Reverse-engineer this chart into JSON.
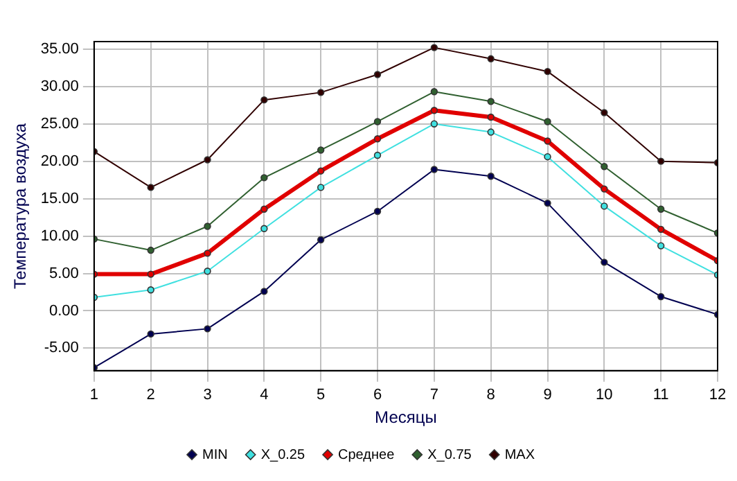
{
  "chart_data": {
    "type": "line",
    "xlabel": "Месяцы",
    "ylabel": "Температура воздуха",
    "x": [
      1,
      2,
      3,
      4,
      5,
      6,
      7,
      8,
      9,
      10,
      11,
      12
    ],
    "xlim": [
      1,
      12
    ],
    "xticks": [
      1,
      2,
      3,
      4,
      5,
      6,
      7,
      8,
      9,
      10,
      11,
      12
    ],
    "ylim": [
      -8,
      36
    ],
    "yticks": [
      {
        "value": -5,
        "label": "-5.00"
      },
      {
        "value": 0,
        "label": "0.00"
      },
      {
        "value": 5,
        "label": "5.00"
      },
      {
        "value": 10,
        "label": "10.00"
      },
      {
        "value": 15,
        "label": "15.00"
      },
      {
        "value": 20,
        "label": "20.00"
      },
      {
        "value": 25,
        "label": "25.00"
      },
      {
        "value": 30,
        "label": "30.00"
      },
      {
        "value": 35,
        "label": "35.00"
      }
    ],
    "grid": true,
    "legend": "bottom",
    "marker": "circle",
    "line_style": "solid",
    "series": [
      {
        "name": "MIN",
        "color": "#000050",
        "values": [
          -7.6,
          -3.1,
          -2.4,
          2.6,
          9.5,
          13.3,
          18.9,
          18.0,
          14.4,
          6.5,
          1.9,
          -0.5
        ]
      },
      {
        "name": "X_0.25",
        "color": "#40e0e0",
        "values": [
          1.8,
          2.8,
          5.3,
          11.0,
          16.5,
          20.8,
          25.0,
          23.9,
          20.6,
          14.0,
          8.7,
          4.8
        ]
      },
      {
        "name": "Среднее",
        "color": "#e00000",
        "values": [
          4.9,
          4.9,
          7.7,
          13.6,
          18.7,
          23.0,
          26.8,
          25.9,
          22.7,
          16.3,
          10.9,
          6.7
        ]
      },
      {
        "name": "X_0.75",
        "color": "#306030",
        "values": [
          9.6,
          8.1,
          11.3,
          17.8,
          21.5,
          25.3,
          29.3,
          28.0,
          25.3,
          19.3,
          13.6,
          10.4
        ]
      },
      {
        "name": "MAX",
        "color": "#300000",
        "values": [
          21.3,
          16.5,
          20.2,
          28.2,
          29.2,
          31.6,
          35.2,
          33.7,
          32.0,
          26.5,
          20.0,
          19.8
        ]
      }
    ]
  }
}
